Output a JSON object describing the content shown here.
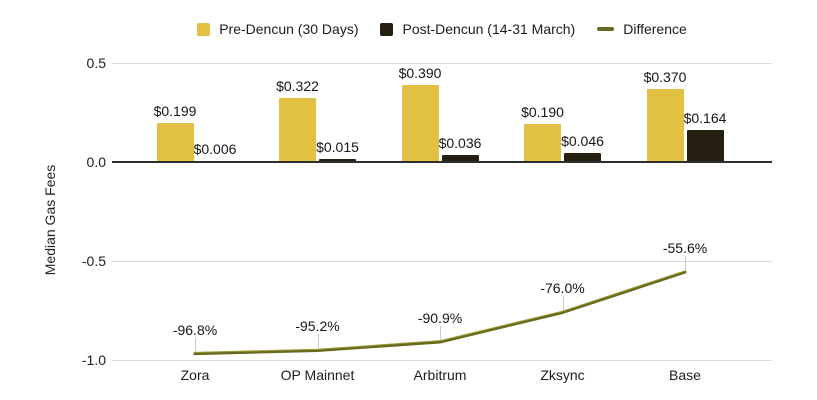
{
  "chart_data": {
    "type": "bar+line",
    "title": "",
    "ylabel": "Median Gas Fees",
    "xlabel": "",
    "categories": [
      "Zora",
      "OP Mainnet",
      "Arbitrum",
      "Zksync",
      "Base"
    ],
    "series": [
      {
        "name": "Pre-Dencun (30 Days)",
        "type": "bar",
        "marker": "square",
        "color": "#E2C044",
        "values": [
          0.199,
          0.322,
          0.39,
          0.19,
          0.37
        ],
        "labels": [
          "$0.199",
          "$0.322",
          "$0.390",
          "$0.190",
          "$0.370"
        ]
      },
      {
        "name": "Post-Dencun (14-31 March)",
        "type": "bar",
        "marker": "square",
        "color": "#241F11",
        "values": [
          0.006,
          0.015,
          0.036,
          0.046,
          0.164
        ],
        "labels": [
          "$0.006",
          "$0.015",
          "$0.036",
          "$0.046",
          "$0.164"
        ]
      },
      {
        "name": "Difference",
        "type": "line",
        "marker": "dash",
        "color": "#6B691E",
        "values": [
          -0.968,
          -0.952,
          -0.909,
          -0.76,
          -0.556
        ],
        "labels": [
          "-96.8%",
          "-95.2%",
          "-90.9%",
          "-76.0%",
          "-55.6%"
        ]
      }
    ],
    "ylim": [
      -1.0,
      0.5
    ],
    "yticks": [
      0.5,
      0.0,
      -0.5,
      -1.0
    ],
    "ytick_labels": [
      "0.5",
      "0.0",
      "-0.5",
      "-1.0"
    ],
    "grid": true,
    "legend_position": "top",
    "colors": {
      "grid": "#DBDBDB",
      "zero_axis": "#2E2E2E",
      "leader": "#C9C9C9",
      "line_highlight": "#9B9E3A",
      "background": "#FFFFFF"
    }
  }
}
